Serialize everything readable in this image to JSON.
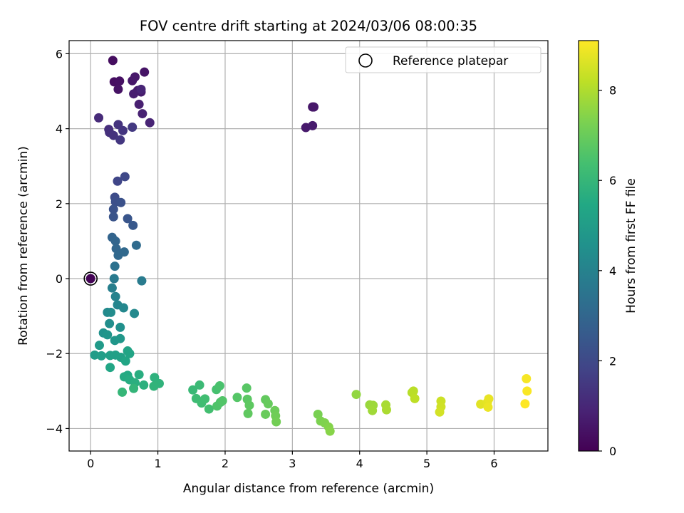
{
  "chart_data": {
    "type": "scatter",
    "title": "FOV centre drift starting at 2024/03/06 08:00:35",
    "xlabel": "Angular distance from reference (arcmin)",
    "ylabel": "Rotation from reference (arcmin)",
    "xlim": [
      -0.32,
      6.8
    ],
    "ylim": [
      -4.6,
      6.35
    ],
    "xticks": [
      0,
      1,
      2,
      3,
      4,
      5,
      6
    ],
    "yticks": [
      -4,
      -2,
      0,
      2,
      4,
      6
    ],
    "grid": true,
    "legend": {
      "position": "top-right",
      "entries": [
        "Reference platepar"
      ]
    },
    "colorbar": {
      "label": "Hours from first FF file",
      "range": [
        0,
        9.1
      ],
      "ticks": [
        0,
        2,
        4,
        6,
        8
      ],
      "colormap": "viridis"
    },
    "reference_point": {
      "x": 0,
      "y": 0
    },
    "points": [
      [
        0.0,
        0.0,
        0.05
      ],
      [
        0.33,
        5.82,
        0.3
      ],
      [
        0.35,
        5.25,
        0.35
      ],
      [
        0.43,
        5.27,
        0.4
      ],
      [
        0.41,
        5.05,
        0.45
      ],
      [
        0.8,
        5.51,
        0.5
      ],
      [
        0.62,
        5.28,
        0.55
      ],
      [
        0.66,
        5.38,
        0.6
      ],
      [
        0.7,
        5.02,
        0.65
      ],
      [
        0.75,
        4.98,
        0.7
      ],
      [
        0.64,
        4.93,
        0.75
      ],
      [
        0.72,
        4.65,
        0.8
      ],
      [
        0.77,
        4.4,
        0.85
      ],
      [
        0.88,
        4.16,
        0.9
      ],
      [
        0.75,
        5.05,
        0.95
      ],
      [
        3.3,
        4.58,
        0.55
      ],
      [
        3.32,
        4.58,
        0.6
      ],
      [
        3.2,
        4.03,
        0.65
      ],
      [
        3.3,
        4.08,
        0.7
      ],
      [
        0.12,
        4.29,
        1.1
      ],
      [
        0.27,
        3.98,
        1.2
      ],
      [
        0.28,
        3.9,
        1.25
      ],
      [
        0.34,
        3.82,
        1.3
      ],
      [
        0.41,
        4.11,
        1.35
      ],
      [
        0.48,
        3.95,
        1.4
      ],
      [
        0.44,
        3.7,
        1.45
      ],
      [
        0.62,
        4.04,
        1.5
      ],
      [
        0.4,
        2.6,
        1.9
      ],
      [
        0.51,
        2.72,
        1.95
      ],
      [
        0.36,
        2.17,
        2.1
      ],
      [
        0.37,
        2.05,
        2.2
      ],
      [
        0.45,
        2.03,
        2.25
      ],
      [
        0.34,
        1.85,
        2.3
      ],
      [
        0.34,
        1.65,
        2.35
      ],
      [
        0.55,
        1.6,
        2.4
      ],
      [
        0.63,
        1.42,
        2.5
      ],
      [
        0.32,
        1.1,
        2.9
      ],
      [
        0.37,
        1.0,
        2.95
      ],
      [
        0.38,
        0.8,
        3.0
      ],
      [
        0.41,
        0.62,
        3.05
      ],
      [
        0.5,
        0.71,
        3.1
      ],
      [
        0.68,
        0.89,
        3.15
      ],
      [
        0.36,
        0.33,
        3.4
      ],
      [
        0.35,
        0.0,
        3.7
      ],
      [
        0.76,
        -0.06,
        3.75
      ],
      [
        0.32,
        -0.25,
        3.9
      ],
      [
        0.37,
        -0.48,
        4.0
      ],
      [
        0.4,
        -0.7,
        4.1
      ],
      [
        0.49,
        -0.78,
        4.2
      ],
      [
        0.65,
        -0.93,
        4.25
      ],
      [
        0.25,
        -0.9,
        4.3
      ],
      [
        0.3,
        -0.9,
        4.35
      ],
      [
        0.28,
        -1.2,
        4.45
      ],
      [
        0.44,
        -1.3,
        4.5
      ],
      [
        0.19,
        -1.45,
        4.6
      ],
      [
        0.25,
        -1.5,
        4.7
      ],
      [
        0.36,
        -1.65,
        4.75
      ],
      [
        0.44,
        -1.6,
        4.8
      ],
      [
        0.13,
        -1.78,
        4.9
      ],
      [
        0.06,
        -2.04,
        5.0
      ],
      [
        0.16,
        -2.06,
        5.05
      ],
      [
        0.29,
        -2.05,
        5.1
      ],
      [
        0.37,
        -2.04,
        5.15
      ],
      [
        0.45,
        -2.1,
        5.2
      ],
      [
        0.55,
        -1.93,
        5.25
      ],
      [
        0.58,
        -2.0,
        5.3
      ],
      [
        0.52,
        -2.2,
        5.35
      ],
      [
        0.29,
        -2.37,
        5.4
      ],
      [
        0.55,
        -2.58,
        5.5
      ],
      [
        0.5,
        -2.62,
        5.55
      ],
      [
        0.58,
        -2.7,
        5.6
      ],
      [
        0.72,
        -2.56,
        5.65
      ],
      [
        0.66,
        -2.78,
        5.7
      ],
      [
        0.79,
        -2.84,
        5.75
      ],
      [
        0.95,
        -2.64,
        5.8
      ],
      [
        1.02,
        -2.8,
        5.85
      ],
      [
        0.94,
        -2.87,
        5.9
      ],
      [
        0.64,
        -2.93,
        5.95
      ],
      [
        0.47,
        -3.03,
        6.0
      ],
      [
        1.52,
        -2.97,
        6.1
      ],
      [
        1.62,
        -2.84,
        6.15
      ],
      [
        1.57,
        -3.2,
        6.2
      ],
      [
        1.65,
        -3.32,
        6.25
      ],
      [
        1.7,
        -3.21,
        6.3
      ],
      [
        1.76,
        -3.48,
        6.35
      ],
      [
        1.87,
        -2.96,
        6.4
      ],
      [
        1.92,
        -2.86,
        6.45
      ],
      [
        1.93,
        -3.3,
        6.5
      ],
      [
        1.88,
        -3.4,
        6.55
      ],
      [
        1.96,
        -3.26,
        6.6
      ],
      [
        2.18,
        -3.17,
        6.65
      ],
      [
        2.32,
        -2.92,
        6.7
      ],
      [
        2.33,
        -3.22,
        6.75
      ],
      [
        2.36,
        -3.38,
        6.8
      ],
      [
        2.34,
        -3.6,
        6.85
      ],
      [
        2.6,
        -3.23,
        6.9
      ],
      [
        2.64,
        -3.34,
        6.95
      ],
      [
        2.6,
        -3.62,
        7.0
      ],
      [
        2.74,
        -3.52,
        7.05
      ],
      [
        2.75,
        -3.66,
        7.1
      ],
      [
        2.76,
        -3.82,
        7.15
      ],
      [
        3.38,
        -3.62,
        7.25
      ],
      [
        3.42,
        -3.8,
        7.3
      ],
      [
        3.48,
        -3.85,
        7.35
      ],
      [
        3.54,
        -3.96,
        7.4
      ],
      [
        3.56,
        -4.07,
        7.45
      ],
      [
        3.95,
        -3.09,
        7.6
      ],
      [
        4.15,
        -3.37,
        7.7
      ],
      [
        4.2,
        -3.38,
        7.75
      ],
      [
        4.19,
        -3.52,
        7.8
      ],
      [
        4.39,
        -3.37,
        7.9
      ],
      [
        4.4,
        -3.5,
        7.95
      ],
      [
        4.78,
        -3.04,
        8.1
      ],
      [
        4.8,
        -3.0,
        8.15
      ],
      [
        4.82,
        -3.2,
        8.2
      ],
      [
        5.21,
        -3.27,
        8.4
      ],
      [
        5.21,
        -3.42,
        8.45
      ],
      [
        5.19,
        -3.56,
        8.5
      ],
      [
        5.8,
        -3.35,
        8.7
      ],
      [
        5.9,
        -3.3,
        8.75
      ],
      [
        5.92,
        -3.21,
        8.8
      ],
      [
        5.91,
        -3.43,
        8.85
      ],
      [
        6.48,
        -2.67,
        9.0
      ],
      [
        6.49,
        -3.0,
        9.05
      ],
      [
        6.46,
        -3.34,
        9.1
      ]
    ]
  }
}
